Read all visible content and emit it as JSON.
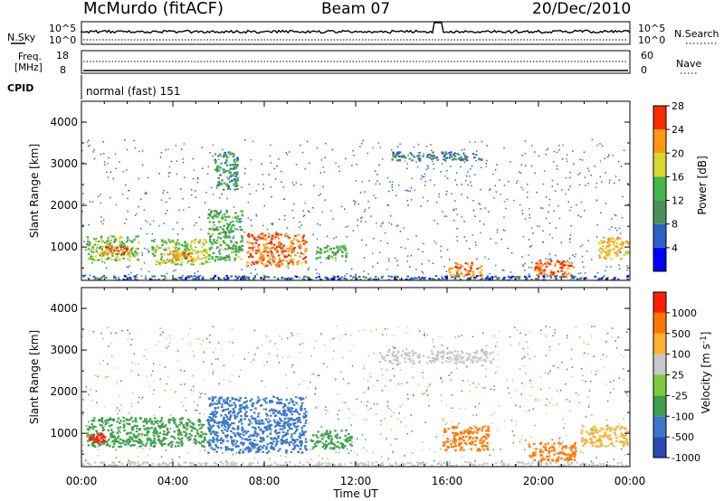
{
  "header": {
    "station": "McMurdo (fitACF)",
    "beam": "Beam 07",
    "date": "20/Dec/2010"
  },
  "noise_panel": {
    "left_label": "N.Sky",
    "right_label": "N.Search",
    "left_ticks": [
      "10^5",
      "10^0"
    ],
    "right_ticks": [
      "10^5",
      "10^0"
    ]
  },
  "freq_panel": {
    "left_label_line1": "Freq.",
    "left_label_line2": "[MHz]",
    "left_ticks": [
      "18",
      "8"
    ],
    "right_label": "Nave",
    "right_ticks": [
      "60",
      "0"
    ]
  },
  "cpid_panel": {
    "label": "CPID",
    "text": "normal (fast) 151"
  },
  "chart_data": [
    {
      "type": "heatmap",
      "quantity": "Power",
      "ylabel": "Slant Range [km]",
      "xlabel": "Time UT",
      "x_ticks": [
        "00:00",
        "04:00",
        "08:00",
        "12:00",
        "16:00",
        "20:00",
        "00:00"
      ],
      "y_ticks": [
        1000,
        2000,
        3000,
        4000
      ],
      "ylim": [
        200,
        4500
      ],
      "xlim_hours": [
        0,
        24
      ],
      "colorbar": {
        "label": "Power [dB]",
        "ticks": [
          "4",
          "8",
          "12",
          "16",
          "20",
          "24",
          "28"
        ],
        "range": [
          0,
          30
        ],
        "colors": [
          "#0000ff",
          "#2a62c4",
          "#4a8f5a",
          "#42b84a",
          "#d8d830",
          "#ff9a10",
          "#ff2a00"
        ]
      },
      "patches": [
        {
          "t0": 0.2,
          "t1": 2.5,
          "r0": 700,
          "r1": 1300,
          "level": 0.55
        },
        {
          "t0": 0.8,
          "t1": 2.1,
          "r0": 850,
          "r1": 1050,
          "level": 0.9
        },
        {
          "t0": 3.0,
          "t1": 5.6,
          "r0": 600,
          "r1": 1200,
          "level": 0.6
        },
        {
          "t0": 3.8,
          "t1": 4.8,
          "r0": 700,
          "r1": 900,
          "level": 0.85
        },
        {
          "t0": 5.5,
          "t1": 7.0,
          "r0": 700,
          "r1": 1900,
          "level": 0.45
        },
        {
          "t0": 7.2,
          "t1": 9.8,
          "r0": 550,
          "r1": 1350,
          "level": 0.9
        },
        {
          "t0": 10.2,
          "t1": 11.6,
          "r0": 700,
          "r1": 1050,
          "level": 0.45
        },
        {
          "t0": 16.0,
          "t1": 17.5,
          "r0": 300,
          "r1": 650,
          "level": 0.85
        },
        {
          "t0": 19.8,
          "t1": 21.5,
          "r0": 300,
          "r1": 700,
          "level": 0.95
        },
        {
          "t0": 22.6,
          "t1": 23.9,
          "r0": 700,
          "r1": 1250,
          "level": 0.75
        },
        {
          "t0": 0.0,
          "t1": 24.0,
          "r0": 200,
          "r1": 330,
          "level": 0.2
        },
        {
          "t0": 13.5,
          "t1": 17.5,
          "r0": 3100,
          "r1": 3300,
          "level": 0.25
        },
        {
          "t0": 5.8,
          "t1": 6.8,
          "r0": 2400,
          "r1": 3300,
          "level": 0.35
        }
      ]
    },
    {
      "type": "heatmap",
      "quantity": "Velocity",
      "ylabel": "Slant Range [km]",
      "xlabel": "Time UT",
      "x_ticks": [
        "00:00",
        "04:00",
        "08:00",
        "12:00",
        "16:00",
        "20:00",
        "00:00"
      ],
      "y_ticks": [
        1000,
        2000,
        3000,
        4000
      ],
      "ylim": [
        200,
        4500
      ],
      "xlim_hours": [
        0,
        24
      ],
      "colorbar": {
        "label": "Velocity [m s^-1]",
        "ticks": [
          "1000",
          "500",
          "100",
          "25",
          "-25",
          "-100",
          "-500",
          "-1000"
        ],
        "colors": [
          "#2848b8",
          "#3a78c8",
          "#3ea04a",
          "#7ccc3c",
          "#c8c8c8",
          "#ffb030",
          "#ff7800",
          "#ff1e00"
        ]
      },
      "patches": [
        {
          "t0": 0.2,
          "t1": 5.6,
          "r0": 700,
          "r1": 1400,
          "level": 2
        },
        {
          "t0": 5.5,
          "t1": 9.8,
          "r0": 550,
          "r1": 1900,
          "level": 1
        },
        {
          "t0": 10.0,
          "t1": 11.8,
          "r0": 650,
          "r1": 1100,
          "level": 2
        },
        {
          "t0": 15.8,
          "t1": 17.8,
          "r0": 600,
          "r1": 1200,
          "level": 6
        },
        {
          "t0": 19.5,
          "t1": 21.6,
          "r0": 350,
          "r1": 800,
          "level": 6
        },
        {
          "t0": 21.8,
          "t1": 23.9,
          "r0": 700,
          "r1": 1200,
          "level": 5
        },
        {
          "t0": 0.0,
          "t1": 24.0,
          "r0": 200,
          "r1": 330,
          "level": 4
        },
        {
          "t0": 13.0,
          "t1": 18.0,
          "r0": 2700,
          "r1": 3000,
          "level": 4
        },
        {
          "t0": 0.3,
          "t1": 1.0,
          "r0": 800,
          "r1": 1000,
          "level": 7
        }
      ]
    }
  ]
}
